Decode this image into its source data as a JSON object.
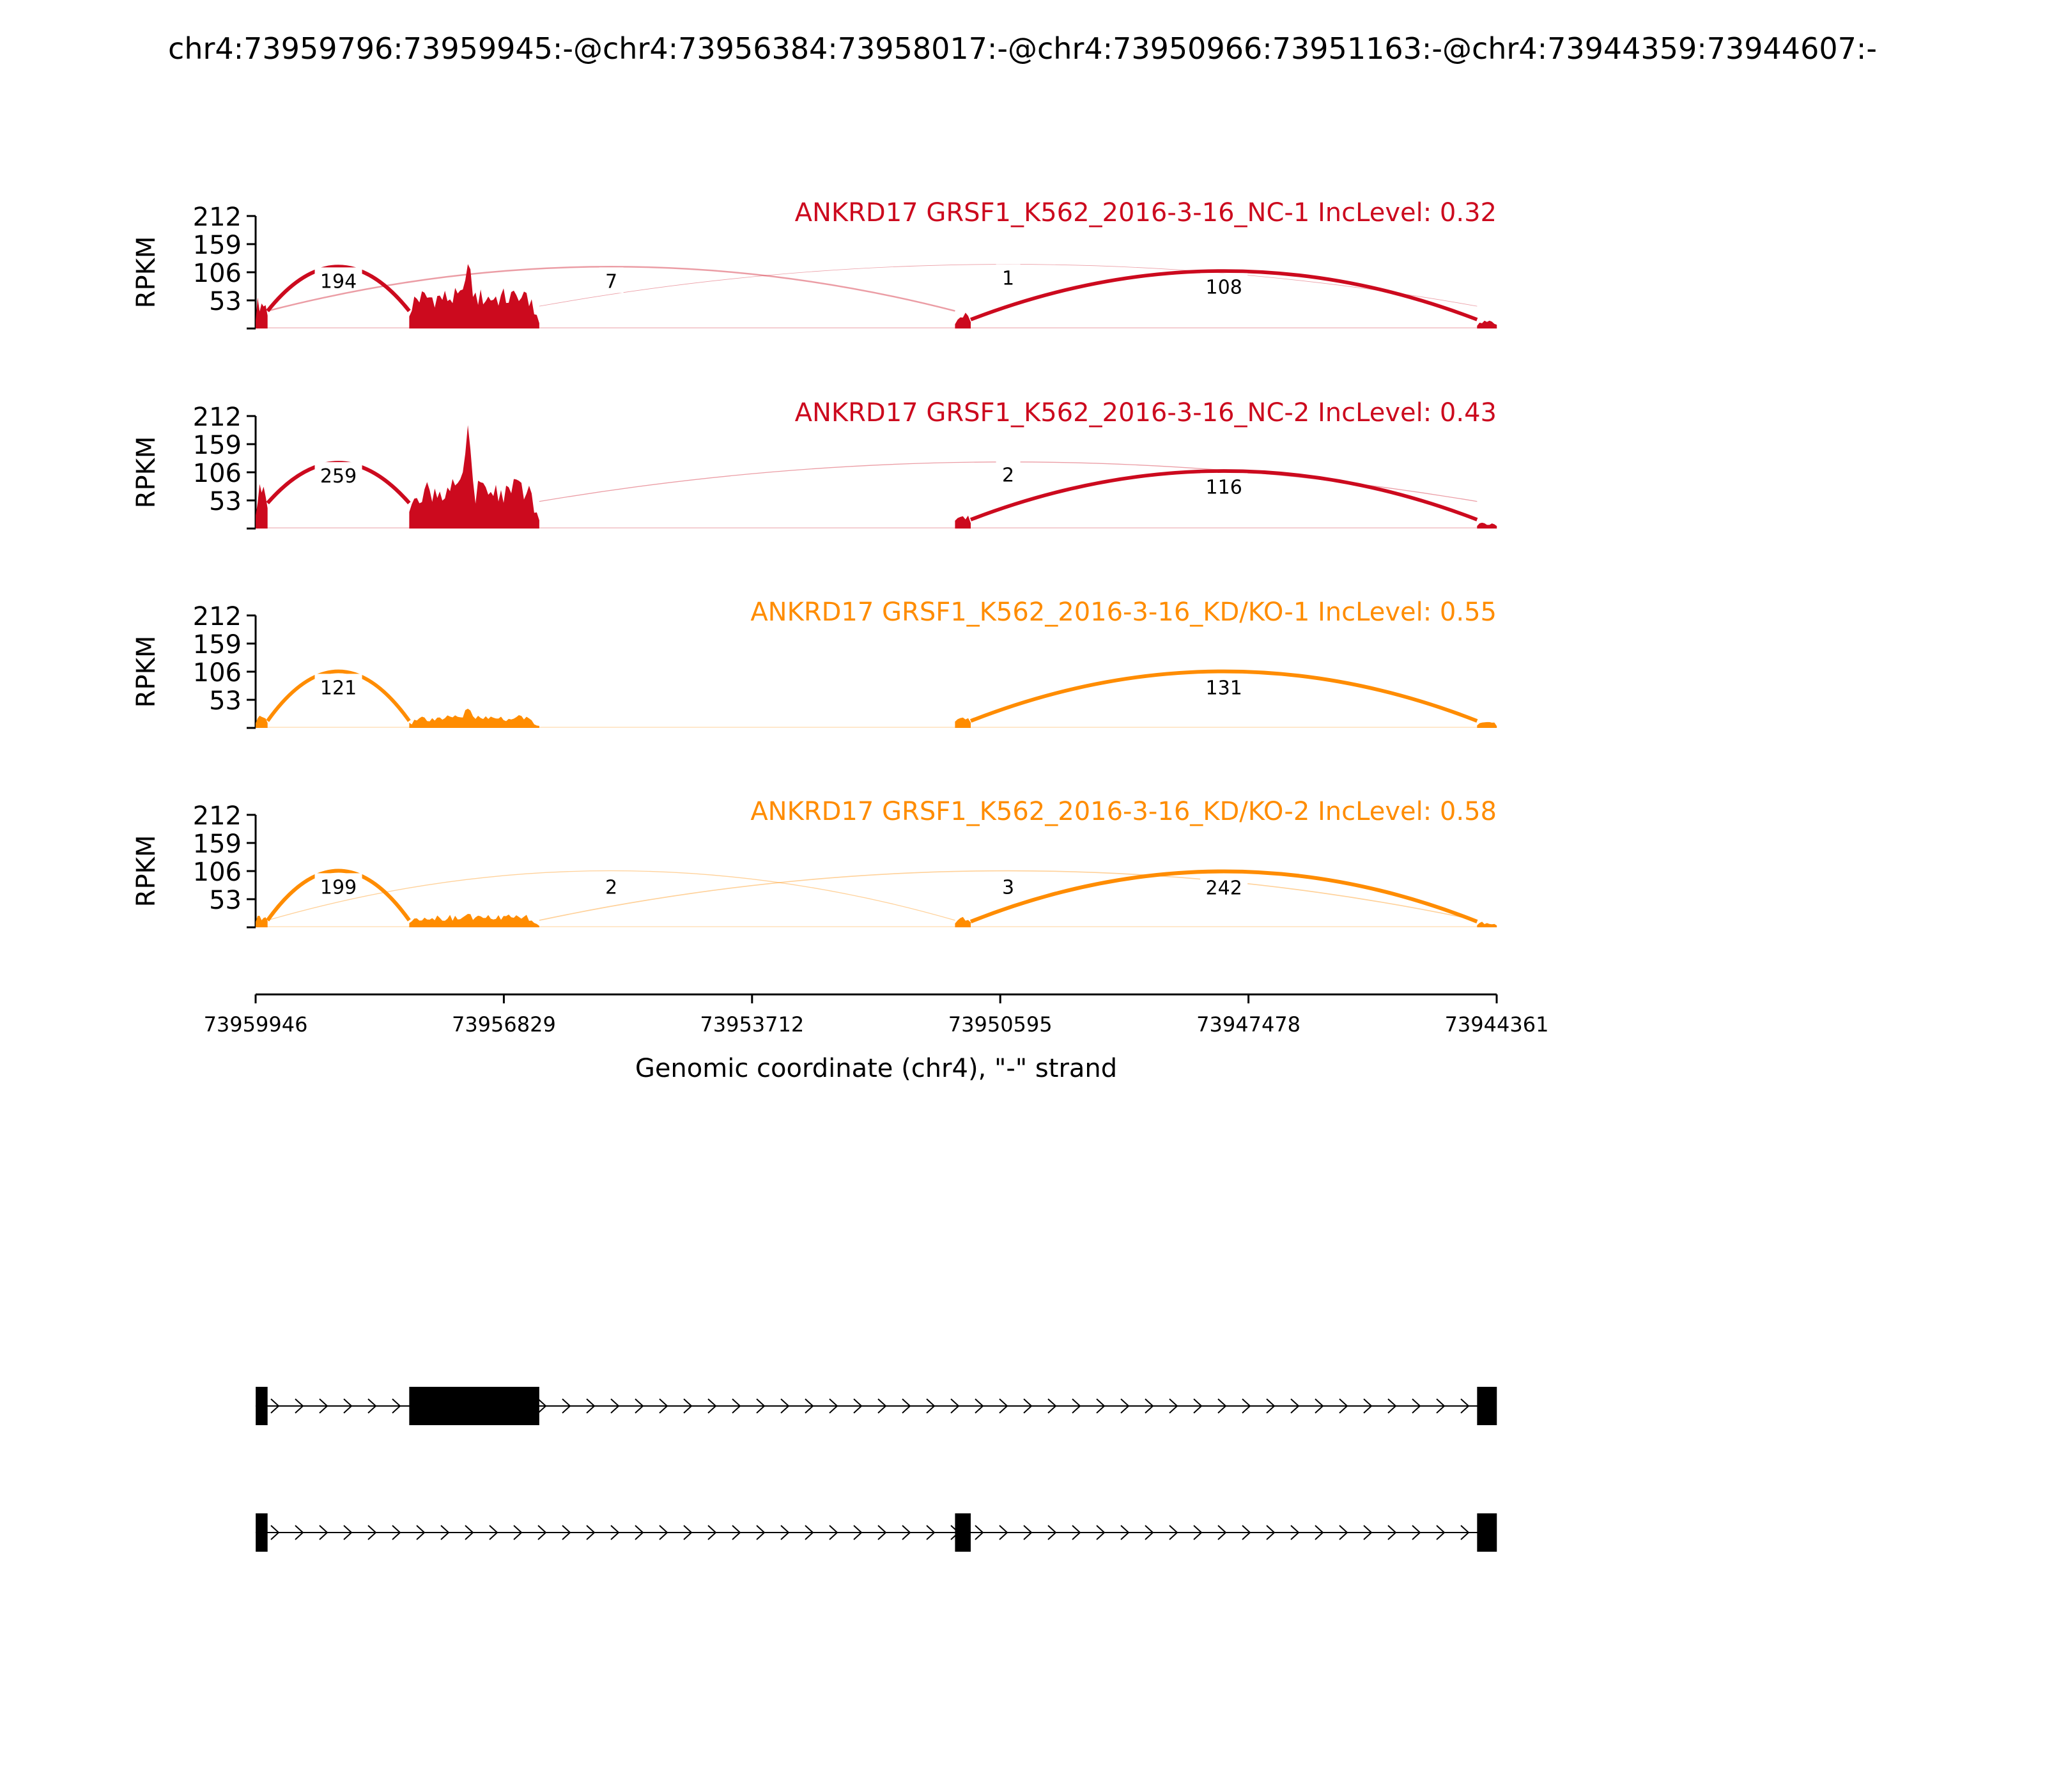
{
  "figure_title": "chr4:73959796:73959945:-@chr4:73956384:73958017:-@chr4:73950966:73951163:-@chr4:73944359:73944607:-",
  "chart_data": {
    "type": "sashimi",
    "y_tick_labels": [
      "53",
      "106",
      "159",
      "212"
    ],
    "y_ticks": [
      53,
      106,
      159,
      212
    ],
    "ylim": [
      0,
      212
    ],
    "ylabel": "RPKM",
    "xlabel": "Genomic coordinate (chr4), \"-\" strand",
    "x_range": [
      73959946,
      73944361
    ],
    "x_tick_labels": [
      "73959946",
      "73956829",
      "73953712",
      "73950595",
      "73947478",
      "73944361"
    ],
    "x_ticks": [
      73959946,
      73956829,
      73953712,
      73950595,
      "73947478",
      73944361
    ],
    "exons": [
      {
        "name": "exon1",
        "start": 73959945,
        "end": 73959796
      },
      {
        "name": "exon2",
        "start": 73958017,
        "end": 73956384
      },
      {
        "name": "exon3",
        "start": 73951163,
        "end": 73950966
      },
      {
        "name": "exon4",
        "start": 73944607,
        "end": 73944359
      }
    ],
    "panels": [
      {
        "title": "ANKRD17 GRSF1_K562_2016-3-16_NC-1 IncLevel: 0.32",
        "color": "#cc0a1e",
        "exon_coverage": [
          {
            "exon": "exon1",
            "level": 55
          },
          {
            "exon": "exon2",
            "level": 70,
            "peak": 140
          },
          {
            "exon": "exon3",
            "level": 28
          },
          {
            "exon": "exon4",
            "level": 14
          }
        ],
        "junctions": [
          {
            "from": "exon1",
            "to": "exon2",
            "count": "194"
          },
          {
            "from": "exon2",
            "to": "exon4",
            "count": "1"
          },
          {
            "from": "exon1",
            "to": "exon3",
            "count": "7"
          },
          {
            "from": "exon3",
            "to": "exon4",
            "count": "108"
          }
        ]
      },
      {
        "title": "ANKRD17 GRSF1_K562_2016-3-16_NC-2 IncLevel: 0.43",
        "color": "#cc0a1e",
        "exon_coverage": [
          {
            "exon": "exon1",
            "level": 80
          },
          {
            "exon": "exon2",
            "level": 85,
            "peak": 200
          },
          {
            "exon": "exon3",
            "level": 28
          },
          {
            "exon": "exon4",
            "level": 10
          }
        ],
        "junctions": [
          {
            "from": "exon1",
            "to": "exon2",
            "count": "259"
          },
          {
            "from": "exon2",
            "to": "exon4",
            "count": "2"
          },
          {
            "from": "exon3",
            "to": "exon4",
            "count": "116"
          }
        ]
      },
      {
        "title": "ANKRD17 GRSF1_K562_2016-3-16_KD/KO-1 IncLevel: 0.55",
        "color": "#ff8c00",
        "exon_coverage": [
          {
            "exon": "exon1",
            "level": 22
          },
          {
            "exon": "exon2",
            "level": 22,
            "peak": 40
          },
          {
            "exon": "exon3",
            "level": 22
          },
          {
            "exon": "exon4",
            "level": 10
          }
        ],
        "junctions": [
          {
            "from": "exon1",
            "to": "exon2",
            "count": "121"
          },
          {
            "from": "exon3",
            "to": "exon4",
            "count": "131"
          }
        ]
      },
      {
        "title": "ANKRD17 GRSF1_K562_2016-3-16_KD/KO-2 IncLevel: 0.58",
        "color": "#ff8c00",
        "exon_coverage": [
          {
            "exon": "exon1",
            "level": 22
          },
          {
            "exon": "exon2",
            "level": 22,
            "peak": 32
          },
          {
            "exon": "exon3",
            "level": 18
          },
          {
            "exon": "exon4",
            "level": 10
          }
        ],
        "junctions": [
          {
            "from": "exon1",
            "to": "exon2",
            "count": "199"
          },
          {
            "from": "exon2",
            "to": "exon4",
            "count": "3"
          },
          {
            "from": "exon1",
            "to": "exon3",
            "count": "2"
          },
          {
            "from": "exon3",
            "to": "exon4",
            "count": "242"
          }
        ]
      }
    ],
    "isoforms": [
      {
        "name": "isoform-skipping",
        "exons": [
          "exon1",
          "exon2",
          "exon4"
        ]
      },
      {
        "name": "isoform-inclusion",
        "exons": [
          "exon1",
          "exon3",
          "exon4"
        ]
      }
    ]
  }
}
